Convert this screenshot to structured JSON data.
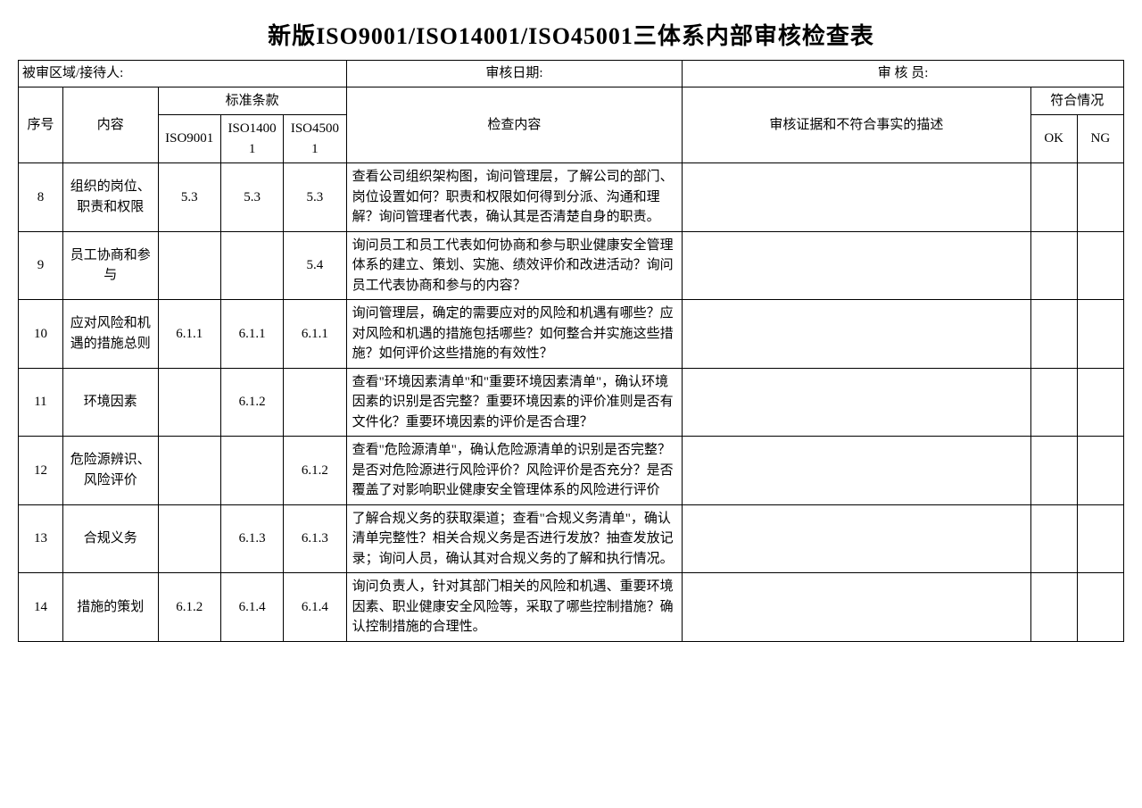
{
  "title": "新版ISO9001/ISO14001/ISO45001三体系内部审核检查表",
  "headerRow": {
    "area": "被审区域/接待人:",
    "date": "审核日期:",
    "auditor": "审 核 员:"
  },
  "columns": {
    "seq": "序号",
    "content": "内容",
    "standard": "标准条款",
    "iso9001": "ISO9001",
    "iso14001": "ISO14001",
    "iso45001": "ISO45001",
    "check": "检查内容",
    "evidence": "审核证据和不符合事实的描述",
    "compliance": "符合情况",
    "ok": "OK",
    "ng": "NG"
  },
  "rows": [
    {
      "seq": "8",
      "content": "组织的岗位、职责和权限",
      "iso9001": "5.3",
      "iso14001": "5.3",
      "iso45001": "5.3",
      "check": "查看公司组织架构图，询问管理层，了解公司的部门、岗位设置如何？职责和权限如何得到分派、沟通和理解？询问管理者代表，确认其是否清楚自身的职责。",
      "evidence": "",
      "ok": "",
      "ng": ""
    },
    {
      "seq": "9",
      "content": "员工协商和参与",
      "iso9001": "",
      "iso14001": "",
      "iso45001": "5.4",
      "check": "询问员工和员工代表如何协商和参与职业健康安全管理体系的建立、策划、实施、绩效评价和改进活动？询问员工代表协商和参与的内容？",
      "evidence": "",
      "ok": "",
      "ng": ""
    },
    {
      "seq": "10",
      "content": "应对风险和机遇的措施总则",
      "iso9001": "6.1.1",
      "iso14001": "6.1.1",
      "iso45001": "6.1.1",
      "check": "询问管理层，确定的需要应对的风险和机遇有哪些？应对风险和机遇的措施包括哪些？如何整合并实施这些措施？如何评价这些措施的有效性？",
      "evidence": "",
      "ok": "",
      "ng": ""
    },
    {
      "seq": "11",
      "content": "环境因素",
      "iso9001": "",
      "iso14001": "6.1.2",
      "iso45001": "",
      "check": "查看\"环境因素清单\"和\"重要环境因素清单\"，确认环境因素的识别是否完整？重要环境因素的评价准则是否有文件化？重要环境因素的评价是否合理？",
      "evidence": "",
      "ok": "",
      "ng": ""
    },
    {
      "seq": "12",
      "content": "危险源辨识、风险评价",
      "iso9001": "",
      "iso14001": "",
      "iso45001": "6.1.2",
      "check": "查看\"危险源清单\"，确认危险源清单的识别是否完整？是否对危险源进行风险评价？风险评价是否充分？是否覆盖了对影响职业健康安全管理体系的风险进行评价",
      "evidence": "",
      "ok": "",
      "ng": ""
    },
    {
      "seq": "13",
      "content": "合规义务",
      "iso9001": "",
      "iso14001": "6.1.3",
      "iso45001": "6.1.3",
      "check": "了解合规义务的获取渠道；查看\"合规义务清单\"，确认清单完整性？相关合规义务是否进行发放？抽查发放记录；询问人员，确认其对合规义务的了解和执行情况。",
      "evidence": "",
      "ok": "",
      "ng": ""
    },
    {
      "seq": "14",
      "content": "措施的策划",
      "iso9001": "6.1.2",
      "iso14001": "6.1.4",
      "iso45001": "6.1.4",
      "check": "询问负责人，针对其部门相关的风险和机遇、重要环境因素、职业健康安全风险等，采取了哪些控制措施？确认控制措施的合理性。",
      "evidence": "",
      "ok": "",
      "ng": ""
    }
  ]
}
